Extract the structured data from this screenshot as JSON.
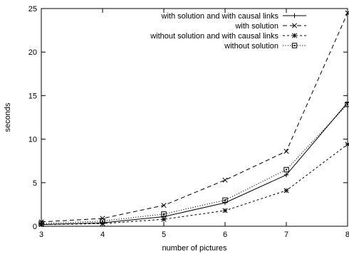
{
  "chart_data": {
    "type": "line",
    "xlabel": "number of pictures",
    "ylabel": "seconds",
    "xlim": [
      3,
      8
    ],
    "ylim": [
      0,
      25
    ],
    "x_ticks": [
      "3",
      "4",
      "5",
      "6",
      "7",
      "8"
    ],
    "y_ticks": [
      "0",
      "5",
      "10",
      "15",
      "20",
      "25"
    ],
    "grid": false,
    "legend_position": "top-right",
    "x": [
      3,
      4,
      5,
      6,
      7,
      8
    ],
    "series": [
      {
        "name": "with solution and with causal links",
        "values": [
          0.2,
          0.4,
          1.1,
          2.7,
          5.9,
          14.2
        ],
        "marker": "plus",
        "dash": "solid",
        "color": "#000000"
      },
      {
        "name": "with solution",
        "values": [
          0.5,
          0.9,
          2.4,
          5.3,
          8.6,
          24.5
        ],
        "marker": "cross",
        "dash": "dashed",
        "color": "#000000"
      },
      {
        "name": "without solution and with causal links",
        "values": [
          0.2,
          0.3,
          0.8,
          1.8,
          4.1,
          9.4
        ],
        "marker": "star",
        "dash": "short-dash",
        "color": "#000000"
      },
      {
        "name": "without solution",
        "values": [
          0.3,
          0.6,
          1.4,
          3.0,
          6.5,
          14.0
        ],
        "marker": "square",
        "dash": "dotted",
        "color": "#000000"
      }
    ]
  }
}
